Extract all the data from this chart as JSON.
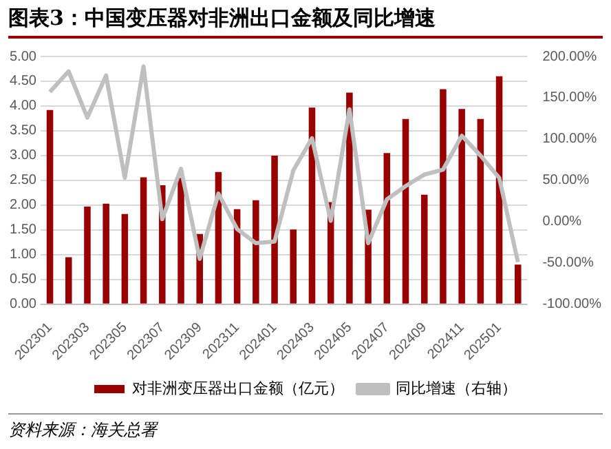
{
  "chart_data": {
    "type": "bar",
    "title": "图表3：中国变压器对非洲出口金额及同比增速",
    "categories": [
      "202301",
      null,
      "202303",
      null,
      "202305",
      null,
      "202307",
      null,
      "202309",
      null,
      "202311",
      null,
      "202401",
      null,
      "202403",
      null,
      "202405",
      null,
      "202407",
      null,
      "202409",
      null,
      "202411",
      null,
      "202501",
      null
    ],
    "series": [
      {
        "name": "对非洲变压器出口金额（亿元）",
        "color": "#990000",
        "values": [
          3.92,
          0.95,
          1.97,
          2.03,
          1.82,
          2.56,
          2.4,
          2.55,
          1.42,
          2.67,
          1.92,
          2.1,
          3.0,
          1.51,
          3.97,
          2.06,
          4.27,
          1.91,
          3.05,
          3.74,
          2.21,
          4.34,
          3.94,
          3.74,
          4.6,
          0.8
        ]
      },
      {
        "name": "同比增速（右轴）",
        "type": "line",
        "axis": "y2",
        "color": "#bfbfbf",
        "values": [
          157,
          182,
          126,
          177,
          53,
          188,
          3,
          64,
          -45,
          34,
          -9,
          -26,
          -24,
          62,
          101,
          1,
          136,
          -26,
          27,
          43,
          57,
          63,
          104,
          80,
          53,
          -49
        ]
      }
    ],
    "ylim": [
      0,
      5
    ],
    "yticks": [
      {
        "value": 0,
        "label": "0.00"
      },
      {
        "value": 0.5,
        "label": "0.50"
      },
      {
        "value": 1,
        "label": "1.00"
      },
      {
        "value": 1.5,
        "label": "1.50"
      },
      {
        "value": 2,
        "label": "2.00"
      },
      {
        "value": 2.5,
        "label": "2.50"
      },
      {
        "value": 3,
        "label": "3.00"
      },
      {
        "value": 3.5,
        "label": "3.50"
      },
      {
        "value": 4,
        "label": "4.00"
      },
      {
        "value": 4.5,
        "label": "4.50"
      },
      {
        "value": 5,
        "label": "5.00"
      }
    ],
    "y2lim": [
      -100,
      200
    ],
    "y2ticks": [
      {
        "value": -100,
        "label": "-100.00%"
      },
      {
        "value": -50,
        "label": "-50.00%"
      },
      {
        "value": 0,
        "label": "0.00%"
      },
      {
        "value": 50,
        "label": "50.00%"
      },
      {
        "value": 100,
        "label": "100.00%"
      },
      {
        "value": 150,
        "label": "150.00%"
      },
      {
        "value": 200,
        "label": "200.00%"
      }
    ],
    "grid": "y",
    "legend": "bottom",
    "marker": "none",
    "line_style": "solid",
    "annotations": [
      "资料来源：海关总署"
    ]
  }
}
